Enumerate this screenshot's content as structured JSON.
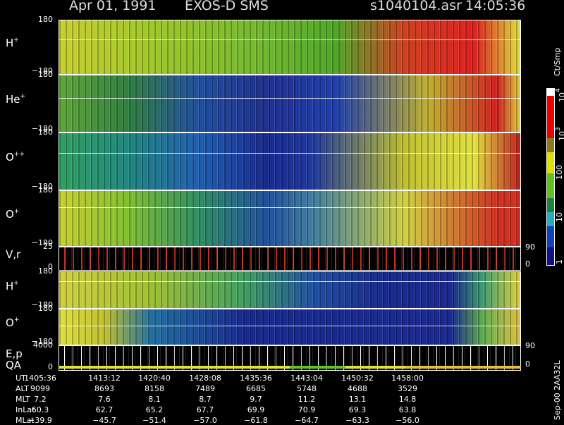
{
  "header": {
    "date": "Apr 01, 1991",
    "instrument": "EXOS-D SMS",
    "file": "s1040104.asr",
    "time": "14:05:36"
  },
  "panels": [
    {
      "label": "H",
      "sup": "+",
      "ytop": "180",
      "ybottom": "−180"
    },
    {
      "label": "He",
      "sup": "+",
      "ytop": "180",
      "ybottom": "−180"
    },
    {
      "label": "O",
      "sup": "++",
      "ytop": "180",
      "ybottom": "−180"
    },
    {
      "label": "O",
      "sup": "+",
      "ytop": "180",
      "ybottom": "−180"
    },
    {
      "label": "V,r",
      "ytop": "25",
      "ybottom": "0",
      "rtop": "90",
      "rbottom": "0"
    },
    {
      "label": "H",
      "sup": "+",
      "ytop": "180",
      "ybottom": "−180"
    },
    {
      "label": "O",
      "sup": "+",
      "ytop": "180",
      "ybottom": "−180"
    },
    {
      "label": "E,p",
      "label2": "QA",
      "ytop": "4000",
      "ybottom": "0",
      "rtop": "90",
      "rbottom": "0"
    }
  ],
  "colorbar": {
    "unit": "Ct/Smp",
    "ticks": [
      {
        "base": "10",
        "sup": "4"
      },
      {
        "base": "10",
        "sup": "3"
      },
      {
        "base": "100"
      },
      {
        "base": "10"
      },
      {
        "base": "1"
      }
    ]
  },
  "table": {
    "rows": [
      {
        "name": "UT",
        "values": [
          "1405:36",
          "1413:12",
          "1420:40",
          "1428:08",
          "1435:36",
          "1443:04",
          "1450:32",
          "1458:00"
        ]
      },
      {
        "name": "ALT",
        "values": [
          "9099",
          "8693",
          "8158",
          "7489",
          "6685",
          "5748",
          "4688",
          "3529"
        ]
      },
      {
        "name": "MLT",
        "values": [
          "7.2",
          "7.6",
          "8.1",
          "8.7",
          "9.7",
          "11.2",
          "13.1",
          "14.8"
        ]
      },
      {
        "name": "InLat",
        "values": [
          "60.3",
          "62.7",
          "65.2",
          "67.7",
          "69.9",
          "70.9",
          "69.3",
          "63.8"
        ]
      },
      {
        "name": "MLat",
        "values": [
          "−39.9",
          "−45.7",
          "−51.4",
          "−57.0",
          "−61.8",
          "−64.7",
          "−63.3",
          "−56.0"
        ]
      }
    ]
  },
  "footer": "Sep-00 2AA32L"
}
